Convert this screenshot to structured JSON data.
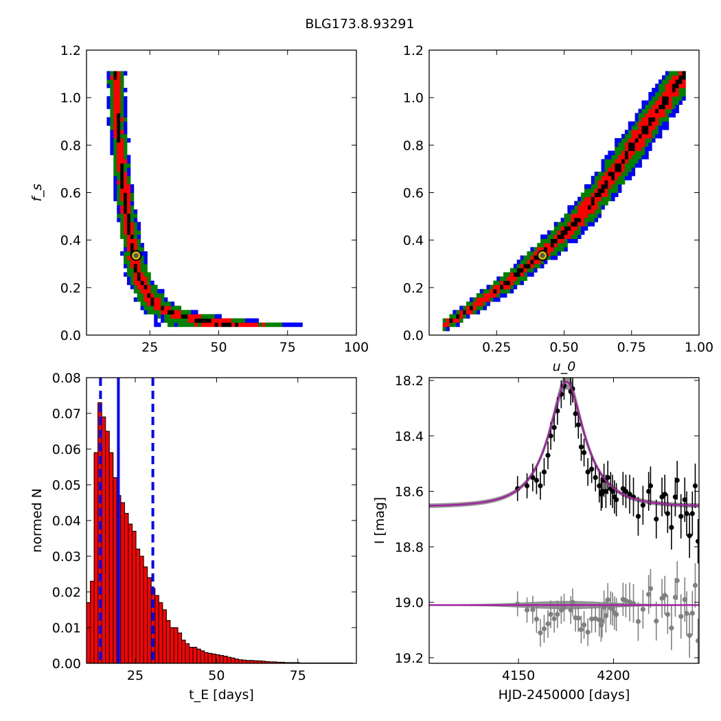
{
  "figure": {
    "title": "BLG173.8.93291"
  },
  "chart_data": [
    {
      "panel": "top-left",
      "type": "heatmap",
      "xlabel": "",
      "ylabel": "f_s",
      "xlim": [
        2,
        100
      ],
      "ylim": [
        0.0,
        1.2
      ],
      "xticks": [
        25,
        50,
        75,
        100
      ],
      "yticks": [
        0.0,
        0.2,
        0.4,
        0.6,
        0.8,
        1.0,
        1.2
      ],
      "ytick_labels": [
        "0.0",
        "0.2",
        "0.4",
        "0.6",
        "0.8",
        "1.0",
        "1.2"
      ],
      "color_levels": [
        "#0000ff",
        "#008000",
        "#ff0000",
        "#000000"
      ],
      "best_fit": {
        "x": 20,
        "y": 0.335
      },
      "credible_band": {
        "y": [
          0.04,
          0.06,
          0.08,
          0.1,
          0.12,
          0.15,
          0.2,
          0.25,
          0.3,
          0.35,
          0.4,
          0.5,
          0.6,
          0.7,
          0.8,
          0.9,
          1.0,
          1.11
        ],
        "x_center": [
          56,
          46,
          38,
          32,
          28,
          26,
          23,
          21,
          19.7,
          19,
          18.3,
          16.7,
          15.7,
          14.7,
          14,
          13.3,
          13,
          12.7
        ],
        "width": [
          28,
          18,
          12,
          9,
          7,
          6,
          5,
          4.6,
          4.2,
          4,
          3.8,
          3.6,
          3.4,
          3.2,
          3.2,
          3.2,
          3.2,
          3.2
        ]
      }
    },
    {
      "panel": "top-right",
      "type": "heatmap",
      "xlabel": "u_0",
      "ylabel": "",
      "xlim": [
        0.0,
        1.0
      ],
      "ylim": [
        0.0,
        1.2
      ],
      "xticks": [
        0.25,
        0.5,
        0.75,
        1.0
      ],
      "xtick_labels": [
        "0.25",
        "0.50",
        "0.75",
        "1.00"
      ],
      "yticks": [
        0.0,
        0.2,
        0.4,
        0.6,
        0.8,
        1.0,
        1.2
      ],
      "ytick_labels": [
        "0.0",
        "0.2",
        "0.4",
        "0.6",
        "0.8",
        "1.0",
        "1.2"
      ],
      "color_levels": [
        "#0000ff",
        "#008000",
        "#ff0000",
        "#000000"
      ],
      "best_fit": {
        "x": 0.42,
        "y": 0.335
      },
      "credible_band": {
        "x": [
          0.06,
          0.1,
          0.15,
          0.2,
          0.25,
          0.3,
          0.35,
          0.4,
          0.45,
          0.5,
          0.55,
          0.6,
          0.65,
          0.7,
          0.75,
          0.8,
          0.85,
          0.9,
          0.95
        ],
        "y_center": [
          0.045,
          0.07,
          0.11,
          0.15,
          0.19,
          0.23,
          0.28,
          0.33,
          0.38,
          0.43,
          0.49,
          0.56,
          0.63,
          0.71,
          0.79,
          0.87,
          0.95,
          1.03,
          1.1
        ],
        "half_width": [
          0.025,
          0.03,
          0.035,
          0.04,
          0.045,
          0.05,
          0.055,
          0.06,
          0.065,
          0.075,
          0.085,
          0.095,
          0.105,
          0.115,
          0.12,
          0.12,
          0.12,
          0.11,
          0.1
        ]
      }
    },
    {
      "panel": "bottom-left",
      "type": "bar",
      "xlabel": "t_E [days]",
      "ylabel": "normed N",
      "xlim": [
        10,
        93
      ],
      "ylim": [
        0.0,
        0.08
      ],
      "xticks": [
        25,
        50,
        75
      ],
      "yticks": [
        0.0,
        0.01,
        0.02,
        0.03,
        0.04,
        0.05,
        0.06,
        0.07,
        0.08
      ],
      "ytick_labels": [
        "0.00",
        "0.01",
        "0.02",
        "0.03",
        "0.04",
        "0.05",
        "0.06",
        "0.07",
        "0.08"
      ],
      "bin_start": 10,
      "bin_width": 1.17,
      "values": [
        0.017,
        0.023,
        0.059,
        0.073,
        0.069,
        0.065,
        0.059,
        0.052,
        0.047,
        0.045,
        0.042,
        0.039,
        0.037,
        0.032,
        0.03,
        0.027,
        0.024,
        0.021,
        0.019,
        0.017,
        0.015,
        0.012,
        0.01,
        0.01,
        0.0085,
        0.0065,
        0.0055,
        0.0045,
        0.0045,
        0.004,
        0.0035,
        0.003,
        0.0028,
        0.0026,
        0.0024,
        0.0022,
        0.002,
        0.0017,
        0.0015,
        0.0012,
        0.001,
        0.0009,
        0.0008,
        0.0008,
        0.0007,
        0.0007,
        0.0006,
        0.0005,
        0.0004,
        0.0004,
        0.0003,
        0.0003,
        0.0002,
        0.0002,
        0.0002,
        0.0002,
        0.0001,
        0.0001,
        0.0001,
        0.0001,
        0.0001,
        0.0001,
        0.0001,
        0.0001,
        0.0001,
        0.0001,
        0.0001,
        0.0001,
        0.0001,
        0.0001
      ],
      "bar_color": "#ff0000",
      "vlines": [
        {
          "x": 14.3,
          "style": "dashed",
          "color": "#0000ff"
        },
        {
          "x": 19.8,
          "style": "solid",
          "color": "#0000ff"
        },
        {
          "x": 30.4,
          "style": "dashed",
          "color": "#0000ff"
        }
      ]
    },
    {
      "panel": "bottom-right",
      "type": "scatter",
      "xlabel": "HJD-2450000 [days]",
      "ylabel": "I [mag]",
      "xlim": [
        4103,
        4245
      ],
      "ylim": [
        19.22,
        18.19
      ],
      "y_inverted": true,
      "xticks": [
        4150,
        4200
      ],
      "yticks": [
        18.2,
        18.4,
        18.6,
        18.8,
        19.0,
        19.2
      ],
      "ytick_labels": [
        "18.2",
        "18.4",
        "18.6",
        "18.8",
        "19.0",
        "19.2"
      ],
      "model": {
        "t0": 4175.3,
        "tE": 20,
        "u0": 0.42,
        "fs": 0.335,
        "baseline": 18.655,
        "color": "#a020a0"
      },
      "residual_offset": 19.01,
      "series": [
        {
          "kind": "data",
          "color": "#000000",
          "x": [
            4149.5,
            4154.5,
            4157.5,
            4159.5,
            4161.5,
            4163.5,
            4165.5,
            4167.0,
            4168.8,
            4170.5,
            4172.5,
            4174.0,
            4177.5,
            4178.5,
            4180.0,
            4181.5,
            4183.0,
            4184.5,
            4186.5,
            4188.5,
            4190.5,
            4192.5,
            4193.5,
            4194.0,
            4195.0,
            4196.0,
            4197.0,
            4198.5,
            4199.5,
            4200.5,
            4201.5,
            4205.0,
            4206.5,
            4208.5,
            4210.5,
            4213.0,
            4215.5,
            4218.5,
            4219.5,
            4222.5,
            4225.5,
            4227.0,
            4228.5,
            4230.5,
            4232.5,
            4233.5,
            4235.5,
            4237.5,
            4238.5,
            4240.0,
            4241.5,
            4243.0,
            4244.5
          ],
          "y": [
            18.59,
            18.58,
            18.55,
            18.56,
            18.58,
            18.53,
            18.47,
            18.4,
            18.37,
            18.31,
            18.25,
            18.22,
            18.24,
            18.23,
            18.32,
            18.36,
            18.44,
            18.46,
            18.53,
            18.52,
            18.55,
            18.58,
            18.61,
            18.6,
            18.56,
            18.6,
            18.55,
            18.59,
            18.6,
            18.62,
            18.63,
            18.59,
            18.6,
            18.61,
            18.62,
            18.69,
            18.65,
            18.6,
            18.58,
            18.7,
            18.62,
            18.61,
            18.68,
            18.73,
            18.62,
            18.56,
            18.69,
            18.63,
            18.68,
            18.76,
            18.68,
            18.58,
            18.78
          ],
          "err": [
            0.045,
            0.045,
            0.05,
            0.05,
            0.05,
            0.05,
            0.05,
            0.05,
            0.05,
            0.05,
            0.05,
            0.05,
            0.05,
            0.05,
            0.05,
            0.05,
            0.05,
            0.05,
            0.05,
            0.05,
            0.05,
            0.06,
            0.06,
            0.06,
            0.06,
            0.06,
            0.06,
            0.06,
            0.06,
            0.06,
            0.06,
            0.06,
            0.06,
            0.07,
            0.07,
            0.07,
            0.07,
            0.07,
            0.07,
            0.07,
            0.07,
            0.07,
            0.07,
            0.08,
            0.07,
            0.07,
            0.08,
            0.08,
            0.08,
            0.08,
            0.08,
            0.08,
            0.08
          ]
        },
        {
          "kind": "residuals",
          "color": "#808080"
        }
      ]
    }
  ]
}
